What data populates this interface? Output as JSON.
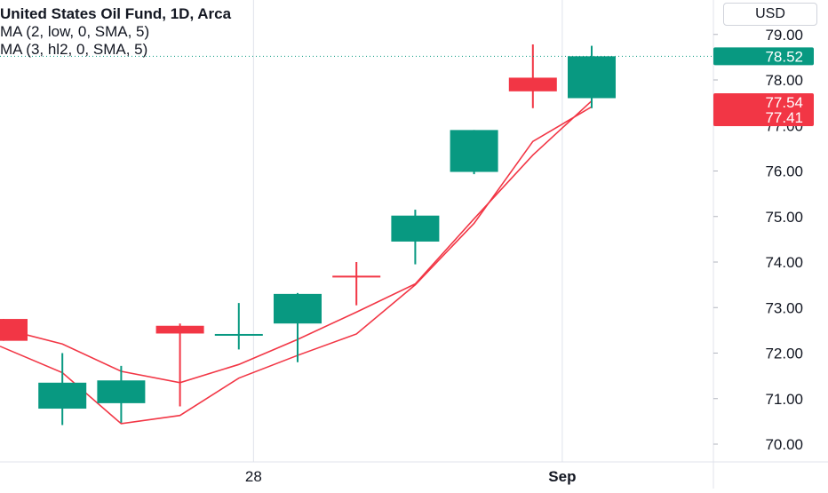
{
  "legend": {
    "title": "United States Oil Fund, 1D, Arca",
    "ma1": "MA (2, low, 0, SMA, 5)",
    "ma2": "MA (3, hl2, 0, SMA, 5)"
  },
  "currency": "USD",
  "colors": {
    "up": "#089981",
    "down": "#f23645",
    "ma_line": "#f23645",
    "grid": "#e0e3eb",
    "axis_text": "#131722",
    "price_line": "#089981"
  },
  "chart_data": {
    "type": "candlestick",
    "title": "United States Oil Fund, 1D, Arca",
    "xlabel": "",
    "ylabel": "",
    "ylim": [
      69.6,
      79.3
    ],
    "y_ticks": [
      "70.00",
      "71.00",
      "72.00",
      "73.00",
      "74.00",
      "75.00",
      "76.00",
      "77.00",
      "78.00",
      "79.00"
    ],
    "x_ticks": [
      {
        "label": "28",
        "index": 4.25
      },
      {
        "label": "Sep",
        "index": 9.5
      }
    ],
    "candles": [
      {
        "o": 72.75,
        "h": 72.75,
        "l": 72.27,
        "c": 72.27
      },
      {
        "o": 70.78,
        "h": 72.0,
        "l": 70.42,
        "c": 71.35
      },
      {
        "o": 70.9,
        "h": 71.72,
        "l": 70.47,
        "c": 71.4
      },
      {
        "o": 72.6,
        "h": 72.65,
        "l": 70.83,
        "c": 72.43
      },
      {
        "o": 72.42,
        "h": 73.1,
        "l": 72.08,
        "c": 72.42
      },
      {
        "o": 72.65,
        "h": 73.32,
        "l": 71.8,
        "c": 73.3
      },
      {
        "o": 73.7,
        "h": 74.0,
        "l": 73.05,
        "c": 73.68
      },
      {
        "o": 74.45,
        "h": 75.15,
        "l": 73.95,
        "c": 75.02
      },
      {
        "o": 75.98,
        "h": 76.9,
        "l": 75.93,
        "c": 76.9
      },
      {
        "o": 78.05,
        "h": 78.78,
        "l": 77.38,
        "c": 77.75
      },
      {
        "o": 77.6,
        "h": 78.75,
        "l": 77.38,
        "c": 78.52
      }
    ],
    "series": [
      {
        "name": "MA (2, low, 0, SMA, 5)",
        "values": [
          72.15,
          71.57,
          70.45,
          70.63,
          71.45,
          71.95,
          72.42,
          73.5,
          74.85,
          76.65,
          77.41
        ]
      },
      {
        "name": "MA (3, hl2, 0, SMA, 5)",
        "values": [
          72.55,
          72.2,
          71.6,
          71.35,
          71.75,
          72.3,
          72.9,
          73.52,
          74.95,
          76.35,
          77.54
        ]
      }
    ],
    "last_price": "78.52",
    "ma_labels": [
      "77.54",
      "77.41"
    ]
  }
}
